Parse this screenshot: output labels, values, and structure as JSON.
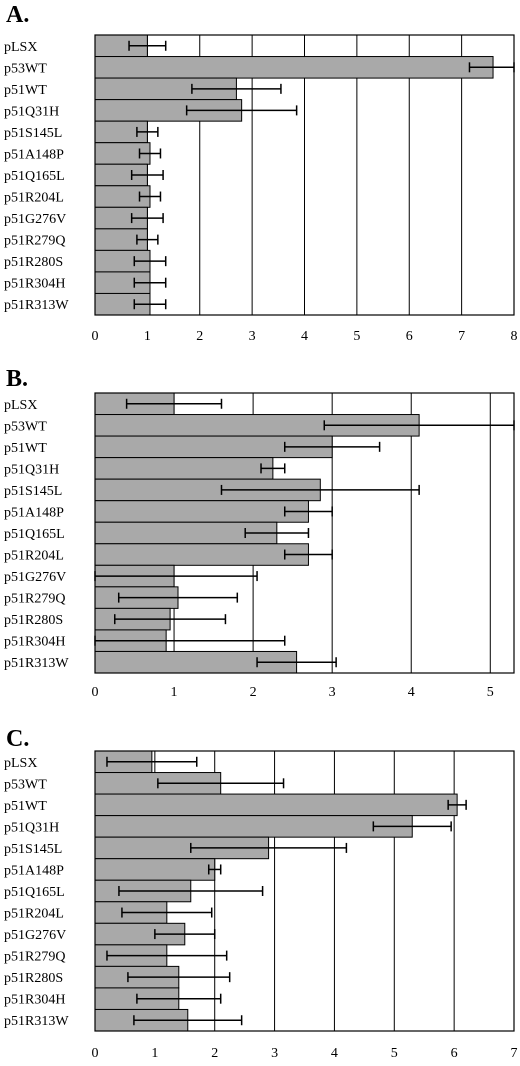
{
  "chart_data": [
    {
      "type": "bar",
      "orientation": "horizontal",
      "panel_label": "A.",
      "categories": [
        "pLSX",
        "p53WT",
        "p51WT",
        "p51Q31H",
        "p51S145L",
        "p51A148P",
        "p51Q165L",
        "p51R204L",
        "p51G276V",
        "p51R279Q",
        "p51R280S",
        "p51R304H",
        "p51R313W"
      ],
      "values": [
        1.0,
        7.6,
        2.7,
        2.8,
        1.0,
        1.05,
        1.0,
        1.05,
        1.0,
        1.0,
        1.05,
        1.05,
        1.05
      ],
      "error": [
        0.35,
        0.45,
        0.85,
        1.05,
        0.2,
        0.2,
        0.3,
        0.2,
        0.3,
        0.2,
        0.3,
        0.3,
        0.3
      ],
      "xlim": [
        0,
        8
      ],
      "xticks": [
        "0",
        "1",
        "2",
        "3",
        "4",
        "5",
        "6",
        "7",
        "8"
      ],
      "grid": true
    },
    {
      "type": "bar",
      "orientation": "horizontal",
      "panel_label": "B.",
      "categories": [
        "pLSX",
        "p53WT",
        "p51WT",
        "p51Q31H",
        "p51S145L",
        "p51A148P",
        "p51Q165L",
        "p51R204L",
        "p51G276V",
        "p51R279Q",
        "p51R280S",
        "p51R304H",
        "p51R313W"
      ],
      "values": [
        1.0,
        4.1,
        3.0,
        2.25,
        2.85,
        2.7,
        2.3,
        2.7,
        1.0,
        1.05,
        0.95,
        0.9,
        2.55
      ],
      "error": [
        0.6,
        1.2,
        0.6,
        0.15,
        1.25,
        0.3,
        0.4,
        0.3,
        1.05,
        0.75,
        0.7,
        1.5,
        0.5
      ],
      "xlim": [
        0,
        5.3
      ],
      "xticks": [
        "0",
        "1",
        "2",
        "3",
        "4",
        "5"
      ],
      "grid": true
    },
    {
      "type": "bar",
      "orientation": "horizontal",
      "panel_label": "C.",
      "categories": [
        "pLSX",
        "p53WT",
        "p51WT",
        "p51Q31H",
        "p51S145L",
        "p51A148P",
        "p51Q165L",
        "p51R204L",
        "p51G276V",
        "p51R279Q",
        "p51R280S",
        "p51R304H",
        "p51R313W"
      ],
      "values": [
        0.95,
        2.1,
        6.05,
        5.3,
        2.9,
        2.0,
        1.6,
        1.2,
        1.5,
        1.2,
        1.4,
        1.4,
        1.55
      ],
      "error": [
        0.75,
        1.05,
        0.15,
        0.65,
        1.3,
        0.1,
        1.2,
        0.75,
        0.5,
        1.0,
        0.85,
        0.7,
        0.9
      ],
      "xlim": [
        0,
        7
      ],
      "xticks": [
        "0",
        "1",
        "2",
        "3",
        "4",
        "5",
        "6",
        "7"
      ],
      "grid": true
    }
  ],
  "colors": {
    "bar_fill": "#a9a9a9",
    "outline": "#000000"
  }
}
